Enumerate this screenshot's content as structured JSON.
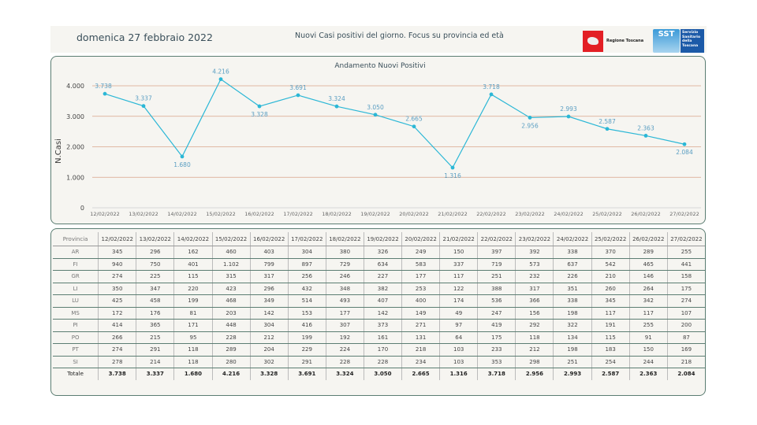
{
  "header": {
    "date": "domenica 27 febbraio 2022",
    "subtitle": "Nuovi Casi positivi del giorno. Focus su provincia ed età",
    "logo_regione": "Regione Toscana",
    "logo_sst": "SST",
    "logo_sst_text": "Servizio Sanitario della Toscana"
  },
  "colors": {
    "line": "#2bb7d6",
    "label": "#5a9ec2",
    "grid": "#d9a48a",
    "border": "#5b7d72"
  },
  "chart_data": {
    "type": "line",
    "title": "Andamento Nuovi Positivi",
    "ylabel": "N.Casi",
    "xlabel": "",
    "ylim": [
      0,
      4000
    ],
    "yticks": [
      "0",
      "1.000",
      "2.000",
      "3.000",
      "4.000"
    ],
    "ytick_values": [
      0,
      1000,
      2000,
      3000,
      4000
    ],
    "grid": true,
    "categories": [
      "12/02/2022",
      "13/02/2022",
      "14/02/2022",
      "15/02/2022",
      "16/02/2022",
      "17/02/2022",
      "18/02/2022",
      "19/02/2022",
      "20/02/2022",
      "21/02/2022",
      "22/02/2022",
      "23/02/2022",
      "24/02/2022",
      "25/02/2022",
      "26/02/2022",
      "27/02/2022"
    ],
    "values": [
      3738,
      3337,
      1680,
      4216,
      3328,
      3691,
      3324,
      3050,
      2665,
      1316,
      3718,
      2956,
      2993,
      2587,
      2363,
      2084
    ],
    "data_labels": [
      "3.738",
      "3.337",
      "1.680",
      "4.216",
      "3.328",
      "3.691",
      "3.324",
      "3.050",
      "2.665",
      "1.316",
      "3.718",
      "2.956",
      "2.993",
      "2.587",
      "2.363",
      "2.084"
    ]
  },
  "table": {
    "header_label": "Provincia",
    "rows": [
      {
        "prov": "AR",
        "values": [
          "345",
          "296",
          "162",
          "460",
          "403",
          "304",
          "380",
          "326",
          "249",
          "150",
          "397",
          "392",
          "338",
          "370",
          "289",
          "255"
        ]
      },
      {
        "prov": "FI",
        "values": [
          "940",
          "750",
          "401",
          "1.102",
          "799",
          "897",
          "729",
          "634",
          "583",
          "337",
          "719",
          "573",
          "637",
          "542",
          "465",
          "441"
        ]
      },
      {
        "prov": "GR",
        "values": [
          "274",
          "225",
          "115",
          "315",
          "317",
          "256",
          "246",
          "227",
          "177",
          "117",
          "251",
          "232",
          "226",
          "210",
          "146",
          "158"
        ]
      },
      {
        "prov": "LI",
        "values": [
          "350",
          "347",
          "220",
          "423",
          "296",
          "432",
          "348",
          "382",
          "253",
          "122",
          "388",
          "317",
          "351",
          "260",
          "264",
          "175"
        ]
      },
      {
        "prov": "LU",
        "values": [
          "425",
          "458",
          "199",
          "468",
          "349",
          "514",
          "493",
          "407",
          "400",
          "174",
          "536",
          "366",
          "338",
          "345",
          "342",
          "274"
        ]
      },
      {
        "prov": "MS",
        "values": [
          "172",
          "176",
          "81",
          "203",
          "142",
          "153",
          "177",
          "142",
          "149",
          "49",
          "247",
          "156",
          "198",
          "117",
          "117",
          "107"
        ]
      },
      {
        "prov": "PI",
        "values": [
          "414",
          "365",
          "171",
          "448",
          "304",
          "416",
          "307",
          "373",
          "271",
          "97",
          "419",
          "292",
          "322",
          "191",
          "255",
          "200"
        ]
      },
      {
        "prov": "PO",
        "values": [
          "266",
          "215",
          "95",
          "228",
          "212",
          "199",
          "192",
          "161",
          "131",
          "64",
          "175",
          "118",
          "134",
          "115",
          "91",
          "87"
        ]
      },
      {
        "prov": "PT",
        "values": [
          "274",
          "291",
          "118",
          "289",
          "204",
          "229",
          "224",
          "170",
          "218",
          "103",
          "233",
          "212",
          "198",
          "183",
          "150",
          "169"
        ]
      },
      {
        "prov": "SI",
        "values": [
          "278",
          "214",
          "118",
          "280",
          "302",
          "291",
          "228",
          "228",
          "234",
          "103",
          "353",
          "298",
          "251",
          "254",
          "244",
          "218"
        ]
      }
    ],
    "total": {
      "prov": "Totale",
      "values": [
        "3.738",
        "3.337",
        "1.680",
        "4.216",
        "3.328",
        "3.691",
        "3.324",
        "3.050",
        "2.665",
        "1.316",
        "3.718",
        "2.956",
        "2.993",
        "2.587",
        "2.363",
        "2.084"
      ]
    }
  }
}
